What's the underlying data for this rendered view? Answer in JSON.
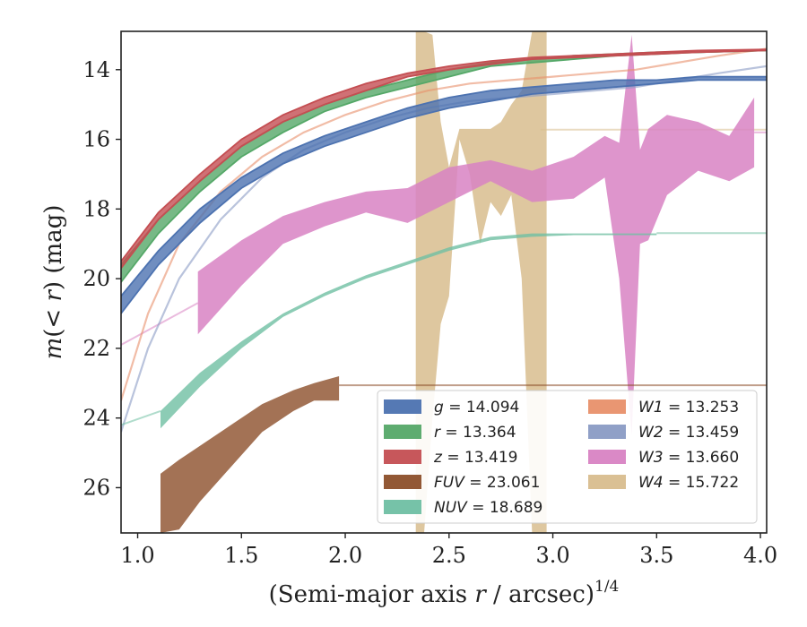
{
  "chart_data": {
    "type": "line",
    "xlabel": "(Semi-major axis r / arcsec)^{1/4}",
    "ylabel": "m(< r) (mag)",
    "xlim": [
      0.92,
      4.03
    ],
    "ylim": [
      27.3,
      12.9
    ],
    "y_inverted": true,
    "grid": false,
    "legend_position": "lower-right",
    "x_ticks": [
      "1.0",
      "1.5",
      "2.0",
      "2.5",
      "3.0",
      "3.5",
      "4.0"
    ],
    "y_ticks": [
      "14",
      "16",
      "18",
      "20",
      "22",
      "24",
      "26"
    ],
    "series": [
      {
        "name": "g",
        "label_var": "g",
        "label_value": "= 14.094",
        "color": "#4c72b0",
        "style": "band",
        "x": [
          0.92,
          1.1,
          1.3,
          1.5,
          1.7,
          1.9,
          2.1,
          2.3,
          2.5,
          2.7,
          2.9,
          3.1,
          3.3,
          3.5,
          3.7,
          4.03
        ],
        "lower": [
          20.5,
          19.2,
          18.0,
          17.1,
          16.4,
          15.9,
          15.5,
          15.1,
          14.8,
          14.6,
          14.5,
          14.4,
          14.3,
          14.3,
          14.2,
          14.2
        ],
        "upper": [
          21.0,
          19.6,
          18.4,
          17.4,
          16.7,
          16.2,
          15.8,
          15.4,
          15.1,
          14.9,
          14.7,
          14.6,
          14.5,
          14.4,
          14.3,
          14.3
        ]
      },
      {
        "name": "r",
        "label_var": "r",
        "label_value": "= 13.364",
        "color": "#55a868",
        "style": "band",
        "x": [
          0.92,
          1.1,
          1.3,
          1.5,
          1.7,
          1.9,
          2.1,
          2.3,
          2.5,
          2.7,
          2.9,
          3.1,
          3.3,
          3.5,
          3.7,
          4.03
        ],
        "lower": [
          19.6,
          18.3,
          17.2,
          16.2,
          15.5,
          15.0,
          14.6,
          14.3,
          14.0,
          13.8,
          13.7,
          13.6,
          13.55,
          13.5,
          13.5,
          13.45
        ],
        "upper": [
          20.1,
          18.7,
          17.5,
          16.5,
          15.8,
          15.2,
          14.8,
          14.5,
          14.2,
          13.9,
          13.8,
          13.7,
          13.6,
          13.55,
          13.5,
          13.45
        ]
      },
      {
        "name": "z",
        "label_var": "z",
        "label_value": "= 13.419",
        "color": "#c44e52",
        "style": "band",
        "x": [
          0.92,
          1.1,
          1.3,
          1.5,
          1.7,
          1.9,
          2.1,
          2.3,
          2.5,
          2.7,
          2.9,
          3.1,
          3.3,
          3.5,
          3.7,
          4.03
        ],
        "lower": [
          19.5,
          18.1,
          17.0,
          16.0,
          15.3,
          14.8,
          14.4,
          14.1,
          13.9,
          13.75,
          13.65,
          13.6,
          13.55,
          13.5,
          13.45,
          13.42
        ],
        "upper": [
          19.7,
          18.3,
          17.2,
          16.2,
          15.5,
          15.0,
          14.6,
          14.2,
          14.0,
          13.85,
          13.7,
          13.65,
          13.6,
          13.55,
          13.5,
          13.45
        ]
      },
      {
        "name": "FUV",
        "label_var": "FUV",
        "label_value": "= 23.061",
        "color": "#8c4f2a",
        "style": "band",
        "x": [
          1.11,
          1.2,
          1.3,
          1.45,
          1.6,
          1.75,
          1.85,
          1.97
        ],
        "lower": [
          25.6,
          25.2,
          24.8,
          24.2,
          23.6,
          23.2,
          23.0,
          22.8
        ],
        "upper": [
          27.3,
          27.2,
          26.4,
          25.4,
          24.4,
          23.8,
          23.5,
          23.5
        ],
        "extension": {
          "x": [
            1.97,
            4.03
          ],
          "y": [
            23.06,
            23.06
          ]
        }
      },
      {
        "name": "NUV",
        "label_var": "NUV",
        "label_value": "= 18.689",
        "color": "#6fbfa3",
        "style": "band",
        "x": [
          1.11,
          1.3,
          1.5,
          1.7,
          1.9,
          2.1,
          2.3,
          2.5,
          2.7,
          2.9,
          3.1,
          3.3,
          3.5
        ],
        "lower": [
          23.8,
          22.7,
          21.8,
          21.0,
          20.4,
          19.9,
          19.5,
          19.1,
          18.8,
          18.7,
          18.7,
          18.7,
          18.7
        ],
        "upper": [
          24.3,
          23.1,
          22.0,
          21.1,
          20.5,
          20.0,
          19.6,
          19.2,
          18.9,
          18.8,
          18.75,
          18.75,
          18.75
        ],
        "extension": {
          "x": [
            0.92,
            1.11
          ],
          "y": [
            24.2,
            23.8
          ]
        },
        "extension_right": {
          "x": [
            3.5,
            4.03
          ],
          "y": [
            18.69,
            18.69
          ]
        }
      },
      {
        "name": "W1",
        "label_var": "W1",
        "label_value": "= 13.253",
        "color": "#e8906a",
        "style": "faint",
        "x": [
          0.92,
          1.05,
          1.2,
          1.4,
          1.6,
          1.8,
          2.0,
          2.2,
          2.4,
          2.6,
          2.8,
          3.0,
          3.2,
          3.4,
          3.6,
          3.8,
          4.03
        ],
        "y": [
          23.5,
          21.0,
          19.0,
          17.5,
          16.5,
          15.8,
          15.3,
          14.9,
          14.6,
          14.4,
          14.3,
          14.2,
          14.1,
          14.0,
          13.8,
          13.6,
          13.4
        ]
      },
      {
        "name": "W2",
        "label_var": "W2",
        "label_value": "= 13.459",
        "color": "#8a9bc4",
        "style": "faint",
        "x": [
          0.92,
          1.05,
          1.2,
          1.4,
          1.6,
          1.8,
          2.0,
          2.2,
          2.4,
          2.6,
          2.8,
          3.0,
          3.2,
          3.4,
          3.6,
          3.8,
          4.03
        ],
        "y": [
          24.4,
          22.0,
          20.0,
          18.3,
          17.1,
          16.3,
          15.8,
          15.4,
          15.1,
          14.9,
          14.8,
          14.7,
          14.6,
          14.5,
          14.3,
          14.1,
          13.9
        ]
      },
      {
        "name": "W3",
        "label_var": "W3",
        "label_value": "= 13.660",
        "color": "#d883c3",
        "style": "band",
        "x": [
          1.29,
          1.5,
          1.7,
          1.9,
          2.1,
          2.3,
          2.5,
          2.7,
          2.9,
          3.1,
          3.25,
          3.32,
          3.38,
          3.42,
          3.46,
          3.55,
          3.7,
          3.85,
          3.97
        ],
        "lower": [
          19.8,
          18.9,
          18.2,
          17.8,
          17.5,
          17.4,
          16.8,
          16.6,
          16.9,
          16.5,
          15.9,
          16.1,
          13.0,
          16.3,
          15.7,
          15.3,
          15.5,
          15.9,
          14.8
        ],
        "upper": [
          21.6,
          20.2,
          19.0,
          18.5,
          18.1,
          18.4,
          17.8,
          17.2,
          17.8,
          17.7,
          17.1,
          20.0,
          24.5,
          19.0,
          18.9,
          17.6,
          16.9,
          17.2,
          16.8
        ],
        "extension": {
          "x": [
            0.92,
            1.29
          ],
          "y": [
            21.9,
            20.7
          ]
        },
        "extension_right": {
          "x": [
            3.97,
            4.03
          ],
          "y": [
            15.8,
            15.8
          ]
        }
      },
      {
        "name": "W4",
        "label_var": "W4",
        "label_value": "= 15.722",
        "color": "#d8bd8e",
        "style": "band",
        "x": [
          2.34,
          2.38,
          2.42,
          2.46,
          2.5,
          2.55,
          2.6,
          2.65,
          2.7,
          2.75,
          2.8,
          2.85,
          2.9,
          2.94,
          2.97
        ],
        "lower": [
          12.9,
          12.9,
          13.0,
          15.5,
          16.8,
          15.7,
          15.7,
          15.7,
          15.7,
          15.5,
          15.0,
          14.6,
          12.9,
          12.9,
          12.9
        ],
        "upper": [
          27.3,
          27.3,
          24.0,
          21.3,
          20.5,
          16.0,
          17.0,
          19.0,
          17.8,
          18.2,
          17.6,
          20.0,
          27.3,
          27.3,
          27.3
        ],
        "extension": {
          "x": [
            2.94,
            4.03
          ],
          "y": [
            15.72,
            15.72
          ]
        }
      }
    ]
  }
}
